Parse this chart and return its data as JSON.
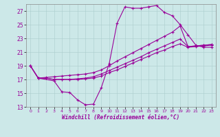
{
  "xlabel": "Windchill (Refroidissement éolien,°C)",
  "bg_color": "#cce8e8",
  "line_color": "#990099",
  "xlim": [
    -0.5,
    23.5
  ],
  "ylim": [
    13,
    28
  ],
  "yticks": [
    13,
    15,
    17,
    19,
    21,
    23,
    25,
    27
  ],
  "xticks": [
    0,
    1,
    2,
    3,
    4,
    5,
    6,
    7,
    8,
    9,
    10,
    11,
    12,
    13,
    14,
    15,
    16,
    17,
    18,
    19,
    20,
    21,
    22,
    23
  ],
  "line1_x": [
    0,
    1,
    3,
    4,
    5,
    6,
    7,
    8,
    9,
    10,
    11,
    12,
    13,
    14,
    15,
    16,
    17,
    18,
    19,
    20,
    21,
    22,
    23
  ],
  "line1_y": [
    19,
    17.2,
    16.8,
    15.2,
    15.1,
    14.0,
    13.3,
    13.4,
    15.8,
    19.3,
    25.2,
    27.6,
    27.4,
    27.4,
    27.6,
    27.8,
    26.8,
    26.3,
    25.0,
    23.5,
    22.0,
    21.7,
    21.7
  ],
  "line2_x": [
    0,
    1,
    2,
    3,
    4,
    5,
    6,
    7,
    8,
    9,
    10,
    11,
    12,
    13,
    14,
    15,
    16,
    17,
    18,
    19,
    20,
    21,
    22,
    23
  ],
  "line2_y": [
    19.0,
    17.2,
    17.2,
    17.0,
    17.0,
    17.0,
    17.1,
    17.2,
    17.4,
    17.8,
    18.3,
    18.8,
    19.3,
    19.8,
    20.3,
    20.9,
    21.4,
    21.9,
    22.4,
    22.9,
    21.8,
    21.9,
    22.0,
    22.1
  ],
  "line3_x": [
    0,
    1,
    2,
    3,
    4,
    5,
    6,
    7,
    8,
    9,
    10,
    11,
    12,
    13,
    14,
    15,
    16,
    17,
    18,
    19,
    20,
    21,
    22,
    23
  ],
  "line3_y": [
    19.0,
    17.2,
    17.3,
    17.4,
    17.5,
    17.6,
    17.7,
    17.8,
    18.0,
    18.4,
    19.0,
    19.7,
    20.3,
    20.9,
    21.5,
    22.1,
    22.7,
    23.3,
    23.9,
    24.8,
    21.8,
    21.9,
    22.0,
    22.1
  ],
  "line4_x": [
    0,
    1,
    2,
    3,
    4,
    5,
    6,
    7,
    8,
    9,
    10,
    11,
    12,
    13,
    14,
    15,
    16,
    17,
    18,
    19,
    20,
    21,
    22,
    23
  ],
  "line4_y": [
    19.0,
    17.2,
    17.2,
    17.0,
    17.0,
    17.0,
    17.0,
    17.1,
    17.2,
    17.5,
    18.0,
    18.4,
    18.9,
    19.4,
    19.9,
    20.4,
    20.9,
    21.3,
    21.8,
    22.2,
    21.7,
    21.8,
    21.9,
    22.0
  ]
}
